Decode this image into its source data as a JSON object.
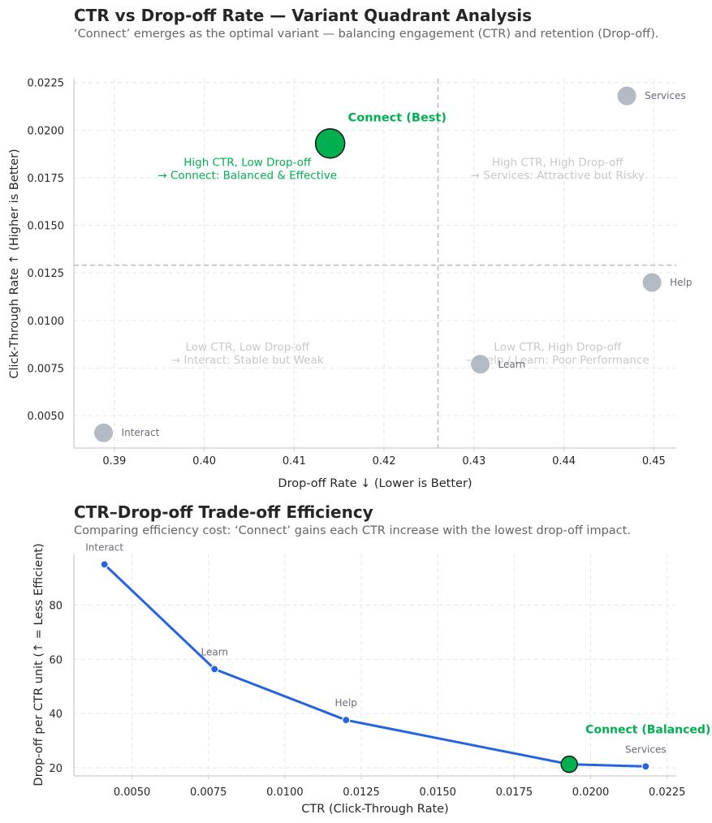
{
  "chart_data": [
    {
      "type": "scatter",
      "title": "CTR vs Drop-off Rate — Variant Quadrant Analysis",
      "subtitle": "‘Connect’ emerges as the optimal variant — balancing engagement (CTR) and retention (Drop-off).",
      "xlabel": "Drop-off Rate ↓ (Lower is Better)",
      "ylabel": "Click-Through Rate ↑ (Higher is Better)",
      "xlim": [
        0.3855,
        0.4525
      ],
      "ylim": [
        0.0033,
        0.0227
      ],
      "xticks": [
        "0.39",
        "0.40",
        "0.41",
        "0.42",
        "0.43",
        "0.44",
        "0.45"
      ],
      "xtick_values": [
        0.39,
        0.4,
        0.41,
        0.42,
        0.43,
        0.44,
        0.45
      ],
      "yticks": [
        "0.0050",
        "0.0075",
        "0.0100",
        "0.0125",
        "0.0150",
        "0.0175",
        "0.0200",
        "0.0225"
      ],
      "ytick_values": [
        0.005,
        0.0075,
        0.01,
        0.0125,
        0.015,
        0.0175,
        0.02,
        0.0225
      ],
      "grid": true,
      "threshold_x": 0.426,
      "threshold_y": 0.0129,
      "points": [
        {
          "name": "Services",
          "x": 0.447,
          "y": 0.0218,
          "highlight": false
        },
        {
          "name": "Connect",
          "x": 0.414,
          "y": 0.0193,
          "highlight": true
        },
        {
          "name": "Help",
          "x": 0.4498,
          "y": 0.012,
          "highlight": false
        },
        {
          "name": "Learn",
          "x": 0.4307,
          "y": 0.0077,
          "highlight": false
        },
        {
          "name": "Interact",
          "x": 0.3888,
          "y": 0.0041,
          "highlight": false
        }
      ],
      "best_label": "Connect (Best)",
      "quadrants": [
        {
          "line1": "High CTR, Low Drop-off",
          "line2": "→ Connect: Balanced & Effective",
          "highlight": true,
          "x": 0.4048,
          "y": 0.0177
        },
        {
          "line1": "High CTR, High Drop-off",
          "line2": "→ Services: Attractive but Risky",
          "highlight": false,
          "x": 0.4393,
          "y": 0.0177
        },
        {
          "line1": "Low CTR, Low Drop-off",
          "line2": "→ Interact: Stable but Weak",
          "highlight": false,
          "x": 0.4048,
          "y": 0.008
        },
        {
          "line1": "Low CTR, High Drop-off",
          "line2": "→ Help / Learn: Poor Performance",
          "highlight": false,
          "x": 0.4393,
          "y": 0.008
        }
      ],
      "colors": {
        "point": "#b4bac4",
        "best": "#00b050",
        "quad_text": "#c8c8c8"
      }
    },
    {
      "type": "line",
      "title": "CTR–Drop-off Trade-off Efficiency",
      "subtitle": "Comparing efficiency cost: ‘Connect’ gains each CTR increase with the lowest drop-off impact.",
      "xlabel": "CTR (Click-Through Rate)",
      "ylabel": "Drop-off per CTR unit (↑ = Less Efficient)",
      "xlim": [
        0.0031,
        0.0228
      ],
      "ylim": [
        17,
        99
      ],
      "xticks": [
        "0.0050",
        "0.0075",
        "0.0100",
        "0.0125",
        "0.0150",
        "0.0175",
        "0.0200",
        "0.0225"
      ],
      "xtick_values": [
        0.005,
        0.0075,
        0.01,
        0.0125,
        0.015,
        0.0175,
        0.02,
        0.0225
      ],
      "yticks": [
        "20",
        "40",
        "60",
        "80"
      ],
      "ytick_values": [
        20,
        40,
        60,
        80
      ],
      "grid": true,
      "points": [
        {
          "name": "Interact",
          "x": 0.0041,
          "y": 95.0,
          "highlight": false
        },
        {
          "name": "Learn",
          "x": 0.0077,
          "y": 56.4,
          "highlight": false
        },
        {
          "name": "Help",
          "x": 0.012,
          "y": 37.6,
          "highlight": false
        },
        {
          "name": "Connect",
          "x": 0.0193,
          "y": 21.3,
          "highlight": true
        },
        {
          "name": "Services",
          "x": 0.0218,
          "y": 20.5,
          "highlight": false
        }
      ],
      "best_label": "Connect (Balanced)",
      "colors": {
        "line": "#2563e0",
        "best": "#00b050"
      }
    }
  ]
}
